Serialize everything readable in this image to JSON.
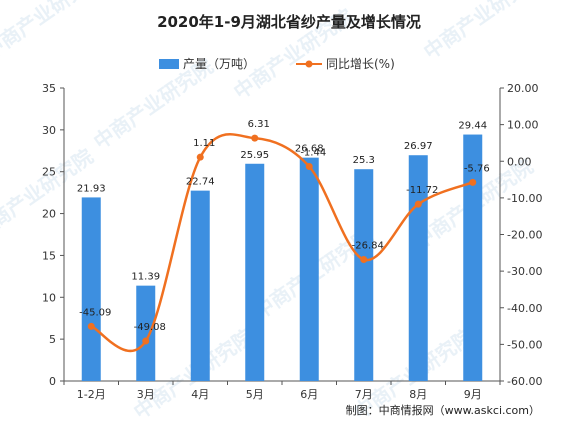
{
  "chart_data": {
    "type": "bar+line",
    "title": "2020年1-9月湖北省纱产量及增长情况",
    "categories": [
      "1-2月",
      "3月",
      "4月",
      "5月",
      "6月",
      "7月",
      "8月",
      "9月"
    ],
    "series": [
      {
        "name": "产量（万吨）",
        "type": "bar",
        "axis": "left",
        "color": "#3d8fe0",
        "values": [
          21.93,
          11.39,
          22.74,
          25.95,
          26.68,
          25.3,
          26.97,
          29.44
        ]
      },
      {
        "name": "同比增长(%)",
        "type": "line",
        "axis": "right",
        "color": "#f07020",
        "values": [
          -45.09,
          -49.08,
          1.11,
          6.31,
          -1.44,
          -26.84,
          -11.72,
          -5.76
        ]
      }
    ],
    "y_left": {
      "min": 0,
      "max": 35,
      "ticks": [
        "0",
        "5",
        "10",
        "15",
        "20",
        "25",
        "30",
        "35"
      ]
    },
    "y_right": {
      "min": -60,
      "max": 20,
      "ticks": [
        "20.00",
        "10.00",
        "0.00",
        "-10.00",
        "-20.00",
        "-30.00",
        "-40.00",
        "-50.00",
        "-60.00"
      ]
    },
    "legend_placement": "top-center",
    "grid": false
  },
  "source_text": "制图：中商情报网（www.askci.com）",
  "watermark": "中商产业研究院"
}
